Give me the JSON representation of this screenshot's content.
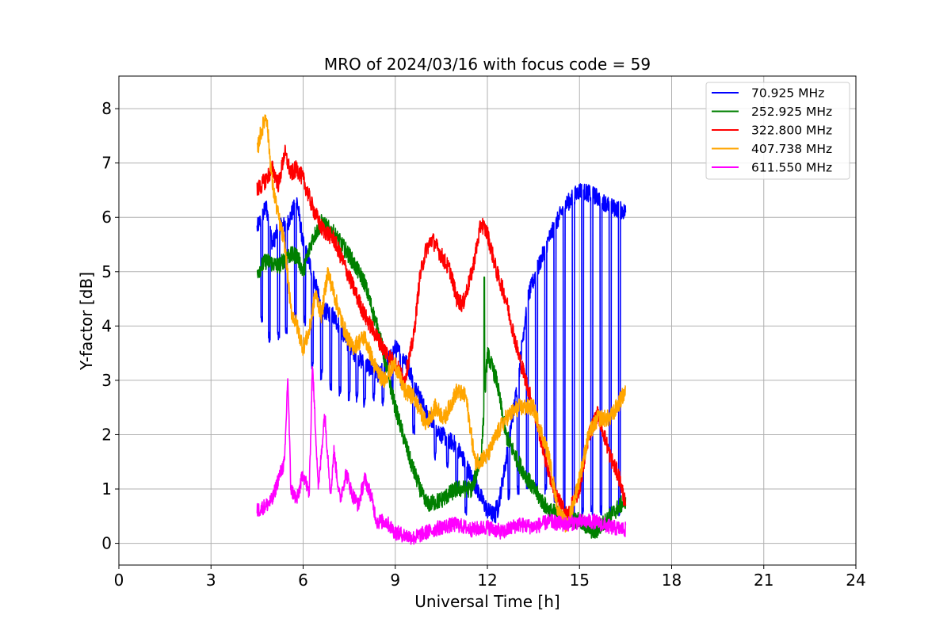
{
  "chart_data": {
    "type": "line",
    "title": "MRO of 2024/03/16 with focus code = 59",
    "xlabel": "Universal Time [h]",
    "ylabel": "Y-factor [dB]",
    "xlim": [
      0,
      24
    ],
    "ylim": [
      -0.4,
      8.6
    ],
    "xticks": [
      0,
      3,
      6,
      9,
      12,
      15,
      18,
      21,
      24
    ],
    "yticks": [
      0,
      1,
      2,
      3,
      4,
      5,
      6,
      7,
      8
    ],
    "grid": true,
    "legend_position": "top-right",
    "series": [
      {
        "name": " 70.925 MHz",
        "color": "#0000ff",
        "x": [
          4.5,
          4.8,
          5.0,
          5.2,
          5.5,
          5.8,
          6.0,
          6.3,
          6.6,
          7.0,
          7.5,
          8.0,
          8.5,
          9.0,
          9.3,
          9.6,
          10.0,
          10.5,
          11.0,
          11.5,
          12.0,
          12.3,
          12.6,
          13.0,
          13.3,
          13.6,
          14.0,
          14.5,
          15.0,
          15.5,
          16.0,
          16.5
        ],
        "y": [
          5.8,
          6.2,
          5.5,
          5.8,
          5.9,
          6.3,
          5.5,
          5.0,
          4.3,
          4.2,
          3.6,
          3.3,
          3.1,
          3.6,
          3.4,
          3.0,
          2.4,
          2.0,
          1.8,
          1.2,
          0.6,
          0.5,
          1.5,
          3.0,
          4.5,
          5.0,
          5.6,
          6.2,
          6.5,
          6.4,
          6.2,
          6.1
        ],
        "dips": [
          4.65,
          4.9,
          5.2,
          5.45,
          5.75,
          6.05,
          6.3,
          6.6,
          6.9,
          7.2,
          7.5,
          7.75,
          8.0,
          8.3,
          8.6,
          8.9,
          9.2,
          9.6,
          10.3,
          10.7,
          11.0,
          11.3,
          12.3,
          12.7,
          13.0,
          13.3,
          13.6,
          13.9,
          14.2,
          14.5,
          14.8,
          15.1,
          15.4,
          15.7,
          16.0,
          16.3
        ],
        "dip_depth": [
          4.0,
          3.7,
          3.7,
          3.8,
          4.1,
          4.0,
          3.2,
          3.0,
          2.8,
          2.7,
          2.6,
          2.6,
          2.5,
          2.6,
          2.5,
          2.8,
          2.9,
          2.0,
          1.5,
          1.3,
          0.9,
          0.5,
          0.6,
          0.8,
          0.9,
          1.0,
          0.9,
          0.9,
          0.7,
          0.5,
          0.4,
          0.5,
          0.5,
          0.5,
          0.5,
          0.5
        ]
      },
      {
        "name": "252.925 MHz",
        "color": "#008000",
        "x": [
          4.5,
          4.8,
          5.2,
          5.5,
          5.8,
          6.0,
          6.3,
          6.6,
          7.0,
          7.5,
          8.0,
          8.5,
          8.8,
          9.0,
          9.5,
          10.0,
          10.5,
          11.0,
          11.5,
          11.8,
          12.0,
          12.3,
          12.6,
          13.0,
          13.5,
          14.0,
          14.5,
          15.0,
          15.5,
          16.0,
          16.5
        ],
        "y": [
          5.0,
          5.2,
          5.1,
          5.3,
          5.3,
          5.0,
          5.6,
          5.9,
          5.7,
          5.3,
          4.8,
          3.8,
          3.0,
          2.5,
          1.5,
          0.7,
          0.8,
          1.0,
          1.0,
          1.6,
          3.5,
          3.0,
          2.0,
          1.5,
          1.0,
          0.6,
          0.5,
          0.4,
          0.2,
          0.5,
          0.8
        ],
        "spikes": [
          [
            11.9,
            4.9
          ],
          [
            10.0,
            0.9
          ]
        ]
      },
      {
        "name": "322.800 MHz",
        "color": "#ff0000",
        "x": [
          4.5,
          4.8,
          5.0,
          5.2,
          5.4,
          5.6,
          5.8,
          6.0,
          6.3,
          6.6,
          7.0,
          7.5,
          8.0,
          8.3,
          8.6,
          9.0,
          9.3,
          9.6,
          9.8,
          10.0,
          10.2,
          10.5,
          10.8,
          11.0,
          11.2,
          11.5,
          11.8,
          12.0,
          12.3,
          12.6,
          13.0,
          13.5,
          14.0,
          14.3,
          14.6,
          15.0,
          15.3,
          15.6,
          16.0,
          16.3,
          16.5
        ],
        "y": [
          6.5,
          6.7,
          6.9,
          6.6,
          7.2,
          6.8,
          6.9,
          6.7,
          6.2,
          5.8,
          5.6,
          4.9,
          4.2,
          3.9,
          3.6,
          3.3,
          3.0,
          3.8,
          4.9,
          5.4,
          5.6,
          5.3,
          5.0,
          4.5,
          4.4,
          5.0,
          5.9,
          5.7,
          5.0,
          4.5,
          3.5,
          2.5,
          1.3,
          0.8,
          0.5,
          1.0,
          2.0,
          2.4,
          1.6,
          1.2,
          0.7
        ]
      },
      {
        "name": "407.738 MHz",
        "color": "#ffa500",
        "x": [
          4.5,
          4.6,
          4.8,
          5.0,
          5.2,
          5.4,
          5.6,
          5.8,
          6.0,
          6.2,
          6.4,
          6.6,
          6.8,
          7.0,
          7.3,
          7.6,
          8.0,
          8.3,
          8.6,
          9.0,
          9.3,
          9.6,
          10.0,
          10.3,
          10.6,
          11.0,
          11.3,
          11.6,
          12.0,
          12.3,
          12.6,
          13.0,
          13.5,
          14.0,
          14.3,
          14.6,
          15.0,
          15.3,
          15.6,
          16.0,
          16.3,
          16.5
        ],
        "y": [
          7.2,
          7.5,
          7.9,
          6.6,
          6.0,
          5.5,
          4.3,
          4.0,
          3.6,
          3.9,
          4.6,
          4.2,
          5.0,
          4.6,
          4.0,
          3.6,
          3.8,
          3.3,
          3.0,
          3.3,
          2.8,
          2.7,
          2.2,
          2.5,
          2.3,
          2.8,
          2.7,
          1.5,
          1.6,
          2.0,
          2.3,
          2.5,
          2.5,
          1.6,
          0.6,
          0.3,
          1.2,
          2.0,
          2.3,
          2.3,
          2.6,
          2.8
        ]
      },
      {
        "name": "611.550 MHz",
        "color": "#ff00ff",
        "x": [
          4.5,
          4.8,
          5.0,
          5.2,
          5.4,
          5.5,
          5.6,
          5.8,
          6.0,
          6.2,
          6.3,
          6.5,
          6.7,
          6.9,
          7.0,
          7.2,
          7.4,
          7.6,
          7.8,
          8.0,
          8.2,
          8.4,
          8.7,
          9.0,
          9.3,
          9.6,
          10.0,
          10.5,
          11.0,
          11.5,
          12.0,
          12.5,
          13.0,
          13.5,
          14.0,
          14.5,
          15.0,
          15.5,
          16.0,
          16.5
        ],
        "y": [
          0.6,
          0.7,
          0.8,
          1.2,
          1.5,
          3.1,
          1.0,
          0.8,
          1.3,
          0.9,
          3.3,
          1.0,
          2.4,
          0.9,
          1.7,
          0.8,
          1.3,
          0.9,
          0.7,
          1.2,
          0.9,
          0.4,
          0.4,
          0.2,
          0.15,
          0.1,
          0.2,
          0.3,
          0.35,
          0.25,
          0.3,
          0.2,
          0.35,
          0.3,
          0.4,
          0.35,
          0.4,
          0.4,
          0.3,
          0.25
        ]
      }
    ]
  }
}
